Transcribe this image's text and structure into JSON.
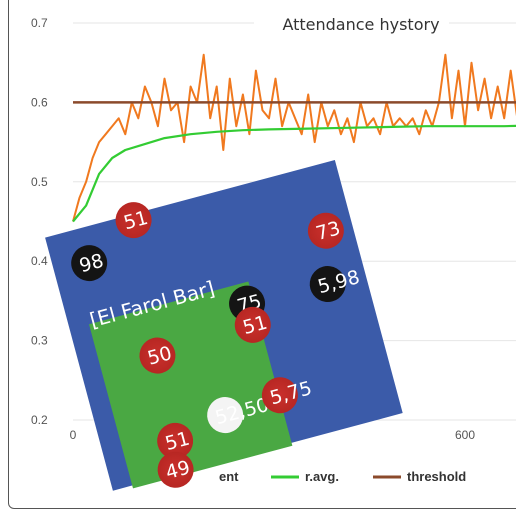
{
  "chart": {
    "title": "Attendance hystory",
    "y_ticks": [
      "0.7",
      "0.6",
      "0.5",
      "0.4",
      "0.3",
      "0.2"
    ],
    "x_ticks": [
      "0",
      "600"
    ],
    "legend": {
      "attendance_partial": "ent",
      "ravg": "r.avg.",
      "threshold": "threshold"
    },
    "colors": {
      "attendance": "#f0791f",
      "ravg": "#33cc33",
      "threshold": "#8b4a2b",
      "grid": "#e6e6e6"
    }
  },
  "chart_data": {
    "type": "line",
    "title": "Attendance hystory",
    "xlabel": "",
    "ylabel": "",
    "xlim": [
      0,
      700
    ],
    "ylim": [
      0.2,
      0.7
    ],
    "grid": true,
    "legend": "bottom",
    "series": [
      {
        "name": "r.avg.",
        "x": [
          0,
          20,
          40,
          60,
          80,
          100,
          140,
          180,
          220,
          260,
          300,
          360,
          420,
          480,
          540,
          600,
          660,
          700
        ],
        "values": [
          0.45,
          0.47,
          0.51,
          0.53,
          0.54,
          0.545,
          0.555,
          0.56,
          0.563,
          0.565,
          0.566,
          0.567,
          0.568,
          0.569,
          0.57,
          0.57,
          0.57,
          0.571
        ]
      },
      {
        "name": "threshold",
        "x": [
          0,
          700
        ],
        "values": [
          0.6,
          0.6
        ]
      },
      {
        "name": "attendance",
        "x": [
          0,
          10,
          20,
          30,
          40,
          50,
          60,
          70,
          80,
          90,
          100,
          110,
          120,
          130,
          140,
          150,
          160,
          170,
          180,
          190,
          200,
          210,
          220,
          230,
          240,
          250,
          260,
          270,
          280,
          290,
          300,
          310,
          320,
          330,
          340,
          350,
          360,
          370,
          380,
          390,
          400,
          410,
          420,
          430,
          440,
          450,
          460,
          470,
          480,
          490,
          500,
          510,
          520,
          530,
          540,
          550,
          560,
          570,
          580,
          590,
          600,
          610,
          620,
          630,
          640,
          650,
          660,
          670,
          680,
          690,
          700
        ],
        "values": [
          0.45,
          0.48,
          0.5,
          0.53,
          0.55,
          0.56,
          0.57,
          0.58,
          0.56,
          0.6,
          0.58,
          0.62,
          0.6,
          0.57,
          0.63,
          0.59,
          0.6,
          0.55,
          0.62,
          0.6,
          0.66,
          0.58,
          0.62,
          0.54,
          0.63,
          0.57,
          0.61,
          0.56,
          0.64,
          0.59,
          0.58,
          0.63,
          0.57,
          0.6,
          0.58,
          0.56,
          0.61,
          0.55,
          0.6,
          0.57,
          0.59,
          0.56,
          0.58,
          0.55,
          0.6,
          0.57,
          0.58,
          0.56,
          0.6,
          0.57,
          0.58,
          0.57,
          0.58,
          0.56,
          0.59,
          0.57,
          0.6,
          0.66,
          0.58,
          0.64,
          0.57,
          0.65,
          0.59,
          0.63,
          0.58,
          0.62,
          0.58,
          0.64,
          0.58,
          0.6,
          0.58
        ]
      }
    ]
  },
  "simulation": {
    "bar_label": "[El Farol Bar]",
    "agents": [
      {
        "label": "51",
        "kind": "red"
      },
      {
        "label": "98",
        "kind": "black"
      },
      {
        "label": "73",
        "kind": "red"
      },
      {
        "label": "75",
        "kind": "black"
      },
      {
        "label": "51",
        "kind": "red"
      },
      {
        "label": "5,98",
        "kind": "black"
      },
      {
        "label": "50",
        "kind": "red"
      },
      {
        "label": "51",
        "kind": "red"
      },
      {
        "label": "52,50",
        "kind": "white"
      },
      {
        "label": "5,75",
        "kind": "red"
      },
      {
        "label": "49",
        "kind": "red"
      }
    ]
  }
}
